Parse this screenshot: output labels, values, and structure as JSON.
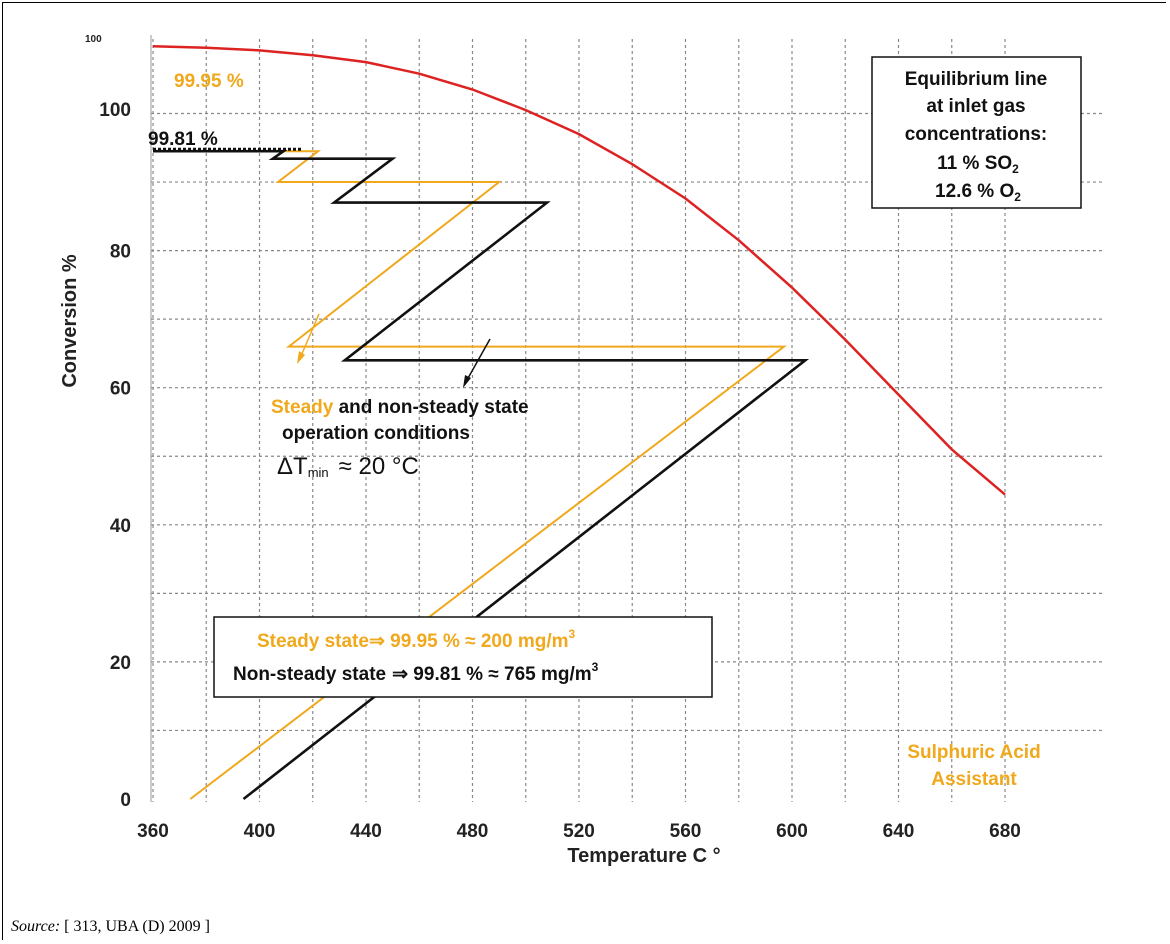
{
  "source": {
    "label": "Source:",
    "text": "[ 313, UBA (D)  2009 ]"
  },
  "colors": {
    "steady": "#f0a81c",
    "non_steady": "#111111",
    "equilibrium": "#dd2222",
    "grid": "#888888"
  },
  "chart_data": {
    "type": "line",
    "xlabel": "Temperature C °",
    "ylabel": "Conversion   %",
    "xlim": [
      350,
      682
    ],
    "ylim": [
      0,
      100
    ],
    "x_ticks": [
      360,
      400,
      440,
      480,
      520,
      560,
      600,
      640,
      680
    ],
    "y_ticks": [
      0,
      20,
      40,
      60,
      80,
      100
    ],
    "y_tick_extra": "100",
    "grid": true,
    "series": [
      {
        "name": "Equilibrium line",
        "color": "#dd2222",
        "points": [
          [
            360,
            109.8
          ],
          [
            380,
            109.6
          ],
          [
            400,
            109.2
          ],
          [
            420,
            108.5
          ],
          [
            440,
            107.5
          ],
          [
            460,
            105.8
          ],
          [
            480,
            103.5
          ],
          [
            500,
            100.5
          ],
          [
            520,
            97
          ],
          [
            540,
            92.6
          ],
          [
            560,
            87.6
          ],
          [
            580,
            81.5
          ],
          [
            600,
            74.6
          ],
          [
            620,
            67
          ],
          [
            640,
            59
          ],
          [
            660,
            51
          ],
          [
            680,
            44.4
          ]
        ]
      },
      {
        "name": "Steady",
        "color": "#f0a81c",
        "points": [
          [
            374,
            0
          ],
          [
            597,
            66
          ],
          [
            411,
            66
          ],
          [
            490,
            90
          ],
          [
            407,
            90
          ],
          [
            422,
            94.5
          ],
          [
            360,
            94.5
          ]
        ]
      },
      {
        "name": "Non-steady",
        "color": "#111111",
        "points": [
          [
            394,
            0
          ],
          [
            605,
            64
          ],
          [
            432,
            64
          ],
          [
            508,
            87
          ],
          [
            428,
            87
          ],
          [
            450,
            93.4
          ],
          [
            405,
            93.4
          ],
          [
            409,
            94.5
          ],
          [
            360,
            94.5
          ]
        ]
      }
    ],
    "annotations": {
      "steady_value": "99.95 %",
      "non_steady_value": "99.81 %",
      "operation_word_steady": "Steady",
      "operation_rest_1": " and non-steady state",
      "operation_line_2": "operation conditions",
      "dt_symbol": "ΔT",
      "dt_sub": "min",
      "dt_value": "≈ 20 °C",
      "equilibrium_box": [
        "Equilibrium line",
        "at inlet gas",
        "concentrations:"
      ],
      "so2_prefix": "11 % SO",
      "so2_sub": "2",
      "o2_prefix": "12.6 % O",
      "o2_sub": "2",
      "result_steady_text": "Steady  state",
      "result_steady_value": " 99.95 % ≈ 200 mg/m",
      "result_nonsteady_text": "Non-steady state",
      "result_nonsteady_value": " 99.81 % ≈ 765 mg/m",
      "arrow": "⇒",
      "superscript": "3",
      "brand_line_1": "Sulphuric Acid",
      "brand_line_2": "Assistant"
    }
  }
}
